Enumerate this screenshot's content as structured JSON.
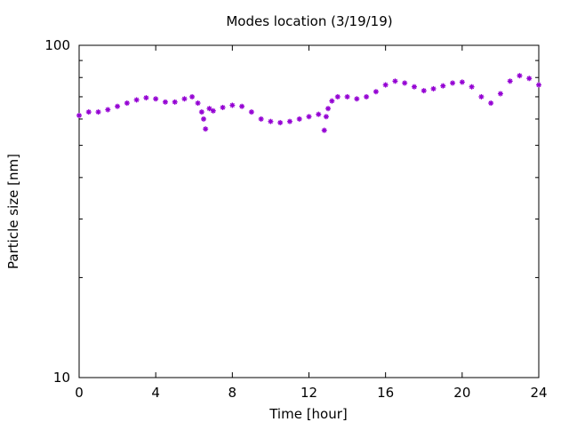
{
  "chart_data": {
    "type": "scatter",
    "title": "Modes location (3/19/19)",
    "xlabel": "Time [hour]",
    "ylabel": "Particle size [nm]",
    "xlim": [
      0,
      24
    ],
    "ylim": [
      10,
      100
    ],
    "yscale": "log",
    "grid": false,
    "marker": "asterisk",
    "color": "#9400d3",
    "xticks": [
      0,
      4,
      8,
      12,
      16,
      20,
      24
    ],
    "xtick_labels": [
      "0",
      "4",
      "8",
      "12",
      "16",
      "20",
      "24"
    ],
    "yticks": [
      10,
      100
    ],
    "ytick_labels": [
      "10",
      "100"
    ],
    "series": [
      {
        "x": [
          0.0,
          0.5,
          1.0,
          1.5,
          2.0,
          2.5,
          3.0,
          3.5,
          4.0,
          4.5,
          5.0,
          5.5,
          5.9,
          6.2,
          6.4,
          6.5,
          6.6,
          6.8,
          7.0,
          7.5,
          8.0,
          8.5,
          9.0,
          9.5,
          10.0,
          10.5,
          11.0,
          11.5,
          12.0,
          12.5,
          12.8,
          12.9,
          13.0,
          13.2,
          13.5,
          14.0,
          14.5,
          15.0,
          15.5,
          16.0,
          16.5,
          17.0,
          17.5,
          18.0,
          18.5,
          19.0,
          19.5,
          20.0,
          20.5,
          21.0,
          21.5,
          22.0,
          22.5,
          23.0,
          23.5,
          24.0
        ],
        "y": [
          61.5,
          63,
          63,
          64,
          65.5,
          67,
          68.5,
          69.5,
          69,
          67.5,
          67.5,
          69,
          70,
          67,
          63,
          60,
          56,
          64.5,
          63.5,
          65,
          66,
          65.5,
          63,
          60,
          59,
          58.5,
          59,
          60,
          61,
          62,
          55.5,
          61,
          64.5,
          68,
          70,
          70,
          69,
          70,
          72.5,
          76,
          78,
          77,
          75,
          73,
          74,
          75.5,
          77,
          77.5,
          75,
          70,
          67,
          71.5,
          78,
          81,
          79.5,
          76
        ]
      }
    ]
  }
}
